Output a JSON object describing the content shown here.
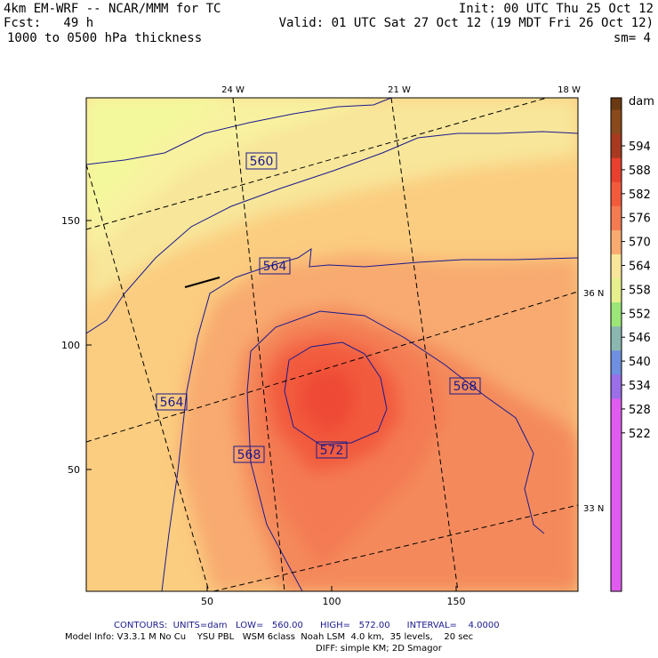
{
  "header": {
    "model": "4km EM-WRF -- NCAR/MMM for TC",
    "init": "Init: 00 UTC Thu 25 Oct 12",
    "forecast": "Fcst:   49 h",
    "valid": "Valid: 01 UTC Sat 27 Oct 12 (19 MDT Fri 26 Oct 12)",
    "field": "1000 to 0500 hPa thickness",
    "smoothing": "sm= 4"
  },
  "map": {
    "x_ticks": [
      "50",
      "100",
      "150"
    ],
    "y_ticks": [
      "50",
      "100",
      "150"
    ],
    "longitude_labels": [
      "24 W",
      "21 W",
      "18 W"
    ],
    "latitude_labels": [
      "36 N",
      "33 N"
    ],
    "contour_labels": [
      "560",
      "564",
      "564",
      "568",
      "568",
      "572"
    ]
  },
  "colorbar": {
    "unit": "dam",
    "levels": [
      "594",
      "588",
      "582",
      "576",
      "570",
      "564",
      "558",
      "552",
      "546",
      "540",
      "534",
      "528",
      "522"
    ],
    "colors": {
      "top": "#6b3a12",
      "594": "#8a4a1c",
      "588": "#a83a20",
      "582": "#e8402e",
      "576": "#f25a3c",
      "570": "#f47a52",
      "564": "#f8aa70",
      "558": "#f8e69a",
      "552": "#e6f08c",
      "546": "#9ce678",
      "540": "#8ab8b0",
      "534": "#6f8fe0",
      "528": "#9a6fe8",
      "522": "#e05cf0"
    }
  },
  "footer": {
    "contours": "CONTOURS:  UNITS=dam   LOW=   560.00      HIGH=   572.00      INTERVAL=    4.0000",
    "model_info": "Model Info: V3.3.1 M No Cu    YSU PBL   WSM 6class  Noah LSM  4.0 km,  35 levels,    20 sec",
    "diff": "DIFF: simple KM; 2D Smagor"
  }
}
